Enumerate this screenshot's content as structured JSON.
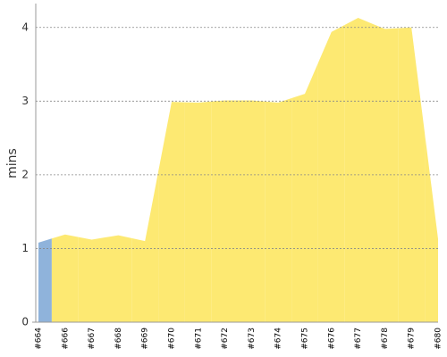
{
  "chart_data": {
    "type": "area",
    "y_label": "mins",
    "categories": [
      "#664",
      "#666",
      "#667",
      "#668",
      "#669",
      "#670",
      "#671",
      "#672",
      "#673",
      "#674",
      "#675",
      "#676",
      "#677",
      "#678",
      "#679",
      "#680"
    ],
    "values": [
      1.08,
      1.19,
      1.12,
      1.18,
      1.1,
      2.99,
      2.98,
      3.01,
      3.01,
      2.98,
      3.1,
      3.94,
      4.13,
      3.98,
      4.0,
      1.13
    ],
    "colors": [
      "#8fb3db",
      "#fde972",
      "#fde972",
      "#fde972",
      "#fde972",
      "#fde972",
      "#fde972",
      "#fde972",
      "#fde972",
      "#fde972",
      "#fde972",
      "#fde972",
      "#fde972",
      "#fde972",
      "#fde972",
      "#fde972"
    ],
    "ylim": [
      0,
      4.3
    ],
    "yticks": [
      0,
      1,
      2,
      3,
      4
    ],
    "grid": true
  }
}
